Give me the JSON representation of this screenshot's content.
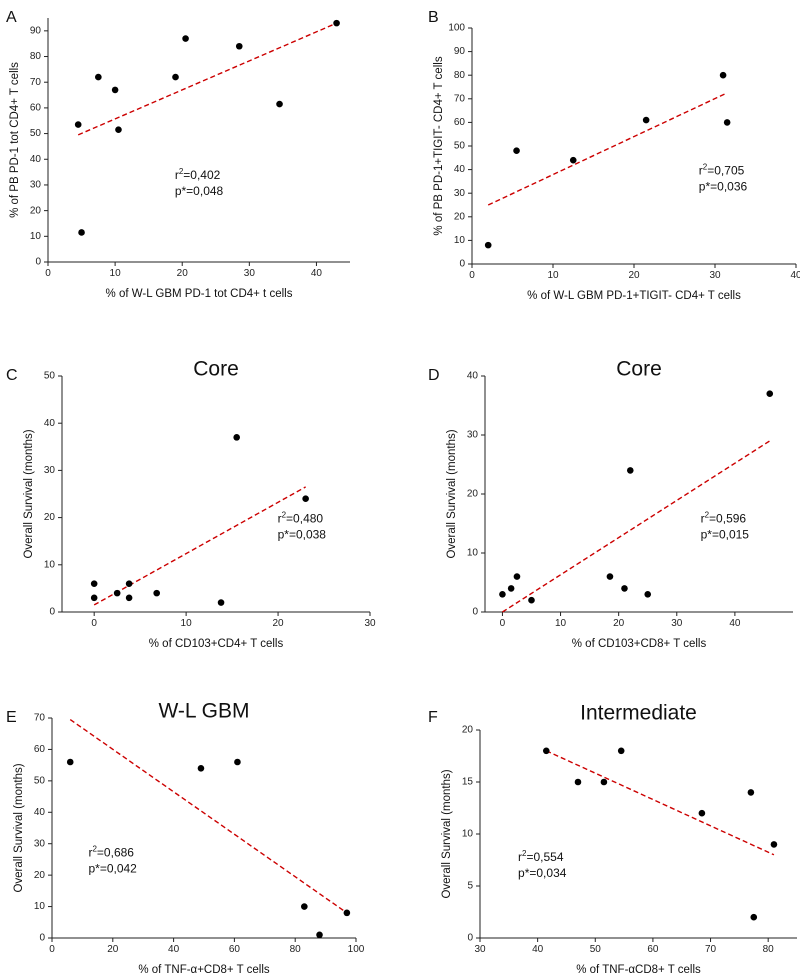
{
  "colors": {
    "points": "#000000",
    "fit": "#cc0000",
    "axis": "#222222"
  },
  "chart_data": [
    {
      "panel": "A",
      "type": "scatter",
      "title": "",
      "xlabel": "% of W-L GBM PD-1 tot CD4+ t cells",
      "ylabel": "% of PB PD-1 tot CD4+ T cells",
      "xlim": [
        0,
        45
      ],
      "ylim": [
        0,
        95
      ],
      "xticks": [
        0,
        10,
        20,
        30,
        40
      ],
      "yticks": [
        0,
        10,
        20,
        30,
        40,
        50,
        60,
        70,
        80,
        90
      ],
      "x": [
        4.5,
        5,
        7.5,
        10,
        10.5,
        19,
        20.5,
        28.5,
        34.5,
        43
      ],
      "y": [
        53.5,
        11.5,
        72,
        67,
        51.5,
        72,
        87,
        84,
        61.5,
        93
      ],
      "fit": {
        "x": [
          4.5,
          43
        ],
        "y": [
          49.5,
          93
        ]
      },
      "r2_label": "r",
      "r2_sup": "2",
      "r2_value": "=0,402",
      "p_value": "p*=0,048",
      "stat_pos": "center"
    },
    {
      "panel": "B",
      "type": "scatter",
      "title": "",
      "xlabel": "% of W-L GBM PD-1+TIGIT- CD4+ T cells",
      "ylabel": "% of PB PD-1+TIGIT- CD4+ T cells",
      "xlim": [
        0,
        40
      ],
      "ylim": [
        0,
        100
      ],
      "xticks": [
        0,
        10,
        20,
        30,
        40
      ],
      "yticks": [
        0,
        10,
        20,
        30,
        40,
        50,
        60,
        70,
        80,
        90,
        100
      ],
      "x": [
        2,
        5.5,
        12.5,
        21.5,
        31,
        31.5
      ],
      "y": [
        8,
        48,
        44,
        61,
        80,
        60
      ],
      "fit": {
        "x": [
          2,
          31.5
        ],
        "y": [
          25,
          72.5
        ]
      },
      "r2_label": "r",
      "r2_sup": "2",
      "r2_value": "=0,705",
      "p_value": "p*=0,036",
      "stat_pos": "right"
    },
    {
      "panel": "C",
      "type": "scatter",
      "title": "Core",
      "xlabel": "% of CD103+CD4+ T cells",
      "ylabel": "Overall Survival (months)",
      "xlim": [
        -3.5,
        30
      ],
      "ylim": [
        0,
        50
      ],
      "xticks": [
        0,
        10,
        20,
        30
      ],
      "yticks": [
        0,
        10,
        20,
        30,
        40,
        50
      ],
      "x": [
        0,
        0,
        2.5,
        3.8,
        3.8,
        6.8,
        13.8,
        15.5,
        23
      ],
      "y": [
        6,
        3,
        4,
        3,
        6,
        4,
        2,
        37,
        24
      ],
      "fit": {
        "x": [
          0,
          23
        ],
        "y": [
          1.5,
          26.5
        ]
      },
      "r2_label": "r",
      "r2_sup": "2",
      "r2_value": "=0,480",
      "p_value": "p*=0,038",
      "stat_pos": "right"
    },
    {
      "panel": "D",
      "type": "scatter",
      "title": "Core",
      "xlabel": "% of CD103+CD8+ T cells",
      "ylabel": "Overall Survival (months)",
      "xlim": [
        -3,
        50
      ],
      "ylim": [
        0,
        40
      ],
      "xticks": [
        0,
        10,
        20,
        30,
        40
      ],
      "yticks": [
        0,
        10,
        20,
        30,
        40
      ],
      "x": [
        0,
        1.5,
        2.5,
        5,
        18.5,
        21,
        22,
        25,
        46
      ],
      "y": [
        3,
        4,
        6,
        2,
        6,
        4,
        24,
        3,
        37
      ],
      "fit": {
        "x": [
          0,
          46
        ],
        "y": [
          0,
          29
        ]
      },
      "r2_label": "r",
      "r2_sup": "2",
      "r2_value": "=0,596",
      "p_value": "p*=0,015",
      "stat_pos": "right"
    },
    {
      "panel": "E",
      "type": "scatter",
      "title": "W-L GBM",
      "xlabel": "% of TNF-α+CD8+ T cells",
      "ylabel": "Overall Survival (months)",
      "xlim": [
        0,
        100
      ],
      "ylim": [
        0,
        70
      ],
      "xticks": [
        0,
        20,
        40,
        60,
        80,
        100
      ],
      "yticks": [
        0,
        10,
        20,
        30,
        40,
        50,
        60,
        70
      ],
      "x": [
        6,
        49,
        61,
        83,
        88,
        97
      ],
      "y": [
        56,
        54,
        56,
        10,
        1,
        8
      ],
      "fit": {
        "x": [
          6,
          97
        ],
        "y": [
          69.5,
          8
        ]
      },
      "r2_label": "r",
      "r2_sup": "2",
      "r2_value": "=0,686",
      "p_value": "p*=0,042",
      "stat_pos": "left"
    },
    {
      "panel": "F",
      "type": "scatter",
      "title": "Intermediate",
      "xlabel": "% of TNF-αCD8+ T cells",
      "ylabel": "Overall Survival (months)",
      "xlim": [
        30,
        85
      ],
      "ylim": [
        0,
        20
      ],
      "xticks": [
        30,
        40,
        50,
        60,
        70,
        80
      ],
      "yticks": [
        0,
        5,
        10,
        15,
        20
      ],
      "x": [
        41.5,
        47,
        51.5,
        54.5,
        68.5,
        77,
        77.5,
        81
      ],
      "y": [
        18,
        15,
        15,
        18,
        12,
        14,
        2,
        9
      ],
      "fit": {
        "x": [
          41.5,
          81
        ],
        "y": [
          18,
          8
        ]
      },
      "r2_label": "r",
      "r2_sup": "2",
      "r2_value": "=0,554",
      "p_value": "p*=0,034",
      "stat_pos": "left"
    }
  ]
}
